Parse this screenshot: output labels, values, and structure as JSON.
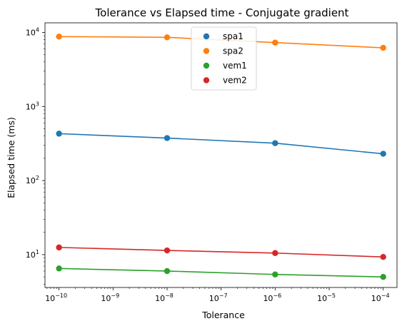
{
  "chart_data": {
    "type": "line",
    "title": "Tolerance vs Elapsed time - Conjugate gradient",
    "xlabel": "Tolerance",
    "ylabel": "Elapsed time (ms)",
    "x_scale": "log",
    "y_scale": "log",
    "x": [
      1e-10,
      1e-08,
      1e-06,
      0.0001
    ],
    "xlim": [
      5.5e-11,
      0.00018
    ],
    "ylim": [
      3.6,
      13500
    ],
    "legend_position": "top-center",
    "grid": false,
    "x_ticks": [
      {
        "value": 1e-10,
        "base": "10",
        "exp": "−10"
      },
      {
        "value": 1e-09,
        "base": "10",
        "exp": "−9"
      },
      {
        "value": 1e-08,
        "base": "10",
        "exp": "−8"
      },
      {
        "value": 1e-07,
        "base": "10",
        "exp": "−7"
      },
      {
        "value": 1e-06,
        "base": "10",
        "exp": "−6"
      },
      {
        "value": 1e-05,
        "base": "10",
        "exp": "−5"
      },
      {
        "value": 0.0001,
        "base": "10",
        "exp": "−4"
      }
    ],
    "y_ticks": [
      {
        "value": 10,
        "base": "10",
        "exp": "1"
      },
      {
        "value": 100,
        "base": "10",
        "exp": "2"
      },
      {
        "value": 1000,
        "base": "10",
        "exp": "3"
      },
      {
        "value": 10000,
        "base": "10",
        "exp": "4"
      }
    ],
    "series": [
      {
        "name": "spa1",
        "color": "#1f77b4",
        "values": [
          430,
          375,
          320,
          230
        ]
      },
      {
        "name": "spa2",
        "color": "#ff7f0e",
        "values": [
          8800,
          8600,
          7300,
          6200
        ]
      },
      {
        "name": "vem1",
        "color": "#2ca02c",
        "values": [
          6.5,
          6.0,
          5.4,
          5.0
        ]
      },
      {
        "name": "vem2",
        "color": "#d62728",
        "values": [
          12.5,
          11.4,
          10.5,
          9.3
        ]
      }
    ]
  }
}
